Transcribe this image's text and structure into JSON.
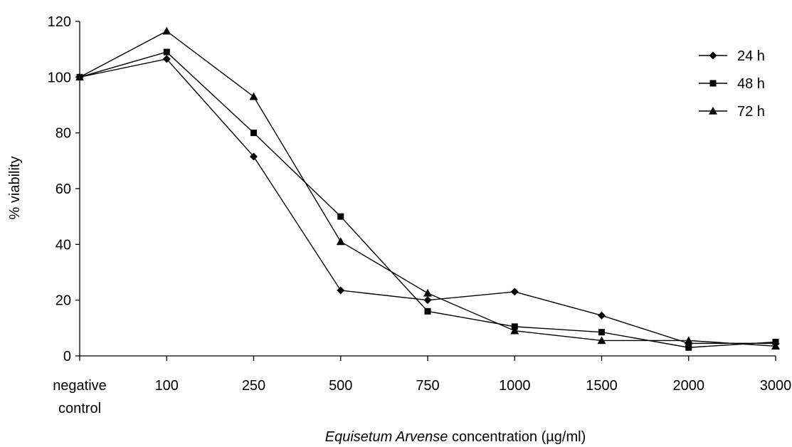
{
  "chart_data": {
    "type": "line",
    "categories": [
      "negative control",
      "100",
      "250",
      "500",
      "750",
      "1000",
      "1500",
      "2000",
      "3000"
    ],
    "category_lines": [
      [
        "negative",
        "control"
      ],
      [
        "100"
      ],
      [
        "250"
      ],
      [
        "500"
      ],
      [
        "750"
      ],
      [
        "1000"
      ],
      [
        "1500"
      ],
      [
        "2000"
      ],
      [
        "3000"
      ]
    ],
    "ylim": [
      0,
      120
    ],
    "yticks": [
      0,
      20,
      40,
      60,
      80,
      100,
      120
    ],
    "ylabel": "% viability",
    "xlabel": {
      "italic_part": "Equisetum Arvense",
      "rest": " concentration (µg/ml)"
    },
    "grid": false,
    "legend_position": "top-right",
    "series": [
      {
        "name": "24 h",
        "marker": "diamond",
        "values": [
          100,
          106.5,
          71.5,
          23.5,
          20,
          23,
          14.5,
          4.5,
          4.5
        ]
      },
      {
        "name": "48 h",
        "marker": "square",
        "values": [
          100,
          109,
          80,
          50,
          16,
          10.5,
          8.5,
          3,
          5
        ]
      },
      {
        "name": "72 h",
        "marker": "triangle",
        "values": [
          100,
          116.5,
          93,
          41,
          22.5,
          9,
          5.5,
          5.5,
          3.5
        ]
      }
    ]
  }
}
